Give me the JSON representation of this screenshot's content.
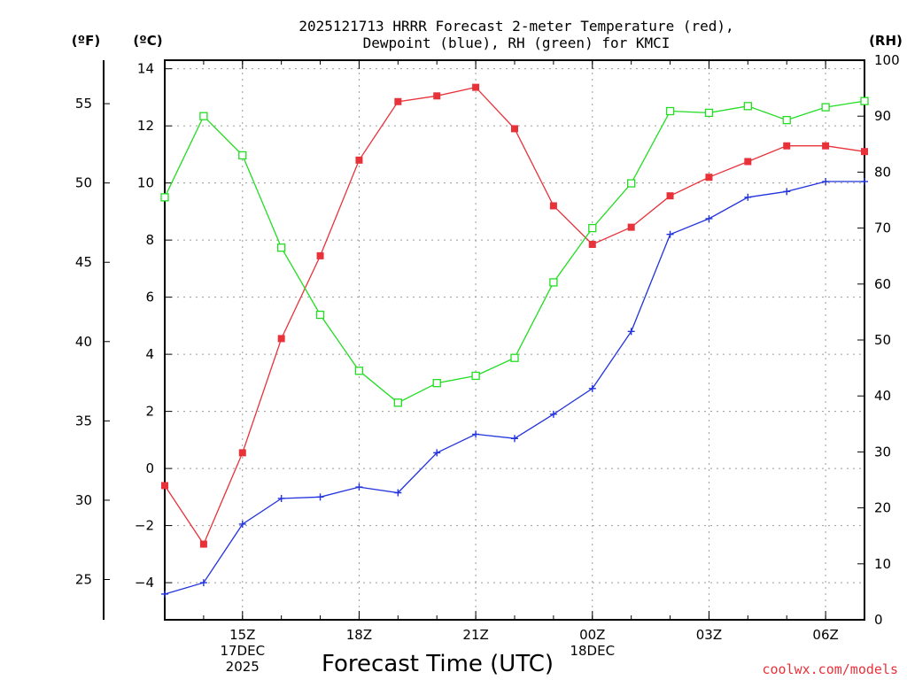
{
  "chart_data": {
    "type": "line",
    "title": [
      "2025121713 HRRR Forecast 2-meter Temperature (red),",
      "Dewpoint (blue), RH (green) for KMCI"
    ],
    "left_outer_unit": "(ºF)",
    "left_unit": "(ºC)",
    "right_unit": "(RH)",
    "xlabel": "Forecast Time (UTC)",
    "credit": "coolwx.com/models",
    "x_range": [
      13,
      31
    ],
    "x_ticks": [
      {
        "x": 15,
        "lines": [
          "15Z",
          "17DEC",
          "2025"
        ]
      },
      {
        "x": 18,
        "lines": [
          "18Z"
        ]
      },
      {
        "x": 21,
        "lines": [
          "21Z"
        ]
      },
      {
        "x": 24,
        "lines": [
          "00Z",
          "18DEC"
        ]
      },
      {
        "x": 27,
        "lines": [
          "03Z"
        ]
      },
      {
        "x": 30,
        "lines": [
          "06Z"
        ]
      }
    ],
    "x_minor": [
      13,
      14,
      15,
      16,
      17,
      18,
      19,
      20,
      21,
      22,
      23,
      24,
      25,
      26,
      27,
      28,
      29,
      30,
      31
    ],
    "celsius_range": [
      -5.3,
      14.3
    ],
    "celsius_ticks": [
      -4,
      -2,
      0,
      2,
      4,
      6,
      8,
      10,
      12,
      14
    ],
    "celsius_tick_labels": [
      "−4",
      "−2",
      "0",
      "2",
      "4",
      "6",
      "8",
      "10",
      "12",
      "14"
    ],
    "fahrenheit_ticks": [
      25,
      30,
      35,
      40,
      45,
      50,
      55
    ],
    "rh_range": [
      0,
      100
    ],
    "rh_ticks": [
      0,
      10,
      20,
      30,
      40,
      50,
      60,
      70,
      80,
      90,
      100
    ],
    "x": [
      13,
      14,
      15,
      16,
      17,
      18,
      19,
      20,
      21,
      22,
      23,
      24,
      25,
      26,
      27,
      28,
      29,
      30,
      31
    ],
    "series": [
      {
        "name": "Temperature",
        "axis": "celsius",
        "color": "#e8323a",
        "marker": "filled-square",
        "values": [
          -0.6,
          -2.65,
          0.55,
          4.55,
          7.45,
          10.8,
          12.85,
          13.05,
          13.35,
          11.9,
          9.2,
          7.85,
          8.45,
          9.55,
          10.2,
          10.75,
          11.3,
          11.3,
          11.1
        ]
      },
      {
        "name": "Dewpoint",
        "axis": "celsius",
        "color": "#2233dd",
        "marker": "plus",
        "values": [
          -4.4,
          -4.0,
          -1.95,
          -1.05,
          -1.0,
          -0.65,
          -0.85,
          0.55,
          1.2,
          1.05,
          1.9,
          2.8,
          4.8,
          8.2,
          8.75,
          9.5,
          9.7,
          10.05,
          10.05
        ]
      },
      {
        "name": "RH",
        "axis": "rh",
        "color": "#22dd22",
        "marker": "open-square",
        "values": [
          75.5,
          90,
          83,
          66.5,
          54.5,
          44.5,
          38.8,
          42.3,
          43.6,
          46.8,
          60.3,
          70,
          78,
          90.9,
          90.6,
          91.8,
          89.3,
          91.6,
          92.7
        ]
      }
    ]
  }
}
